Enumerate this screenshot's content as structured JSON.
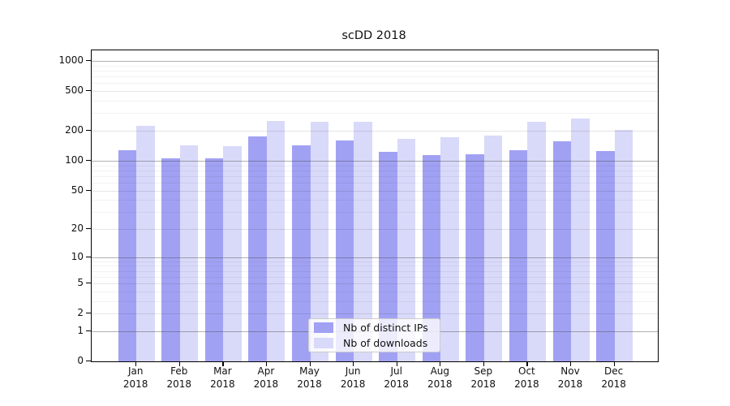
{
  "chart_data": {
    "type": "bar",
    "title": "scDD 2018",
    "scale": "log1p",
    "categories": [
      "Jan 2018",
      "Feb 2018",
      "Mar 2018",
      "Apr 2018",
      "May 2018",
      "Jun 2018",
      "Jul 2018",
      "Aug 2018",
      "Sep 2018",
      "Oct 2018",
      "Nov 2018",
      "Dec 2018"
    ],
    "series": [
      {
        "name": "Nb of distinct IPs",
        "color": "#a1a1f3",
        "values": [
          127,
          105,
          106,
          175,
          144,
          160,
          123,
          114,
          116,
          128,
          158,
          125
        ]
      },
      {
        "name": "Nb of downloads",
        "color": "#d9d9f9",
        "values": [
          225,
          142,
          140,
          253,
          246,
          246,
          166,
          172,
          180,
          245,
          267,
          203
        ]
      }
    ],
    "yticks": [
      0,
      1,
      2,
      5,
      10,
      20,
      50,
      100,
      200,
      500,
      1000
    ],
    "ylim": [
      0,
      1277
    ],
    "xlabel": "",
    "ylabel": "",
    "grid": true,
    "legend_position": "lower center",
    "major_grid_values": [
      1,
      10,
      100,
      1000
    ],
    "sub_grid_values": [
      2,
      5,
      20,
      50,
      200,
      500
    ],
    "minor_grid_multipliers": [
      3,
      4,
      6,
      7,
      8,
      9
    ],
    "axis_color": "#000000",
    "background_color": "#ffffff"
  }
}
